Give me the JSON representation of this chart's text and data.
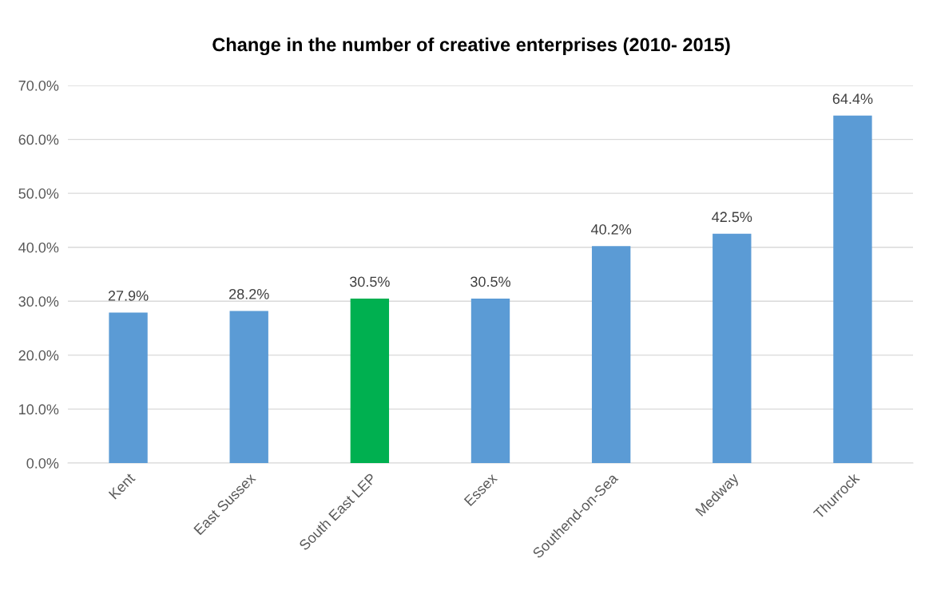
{
  "chart_data": {
    "type": "bar",
    "title": "Change in the number of creative enterprises (2010- 2015)",
    "categories": [
      "Kent",
      "East Sussex",
      "South East LEP",
      "Essex",
      "Southend-on-Sea",
      "Medway",
      "Thurrock"
    ],
    "values": [
      27.9,
      28.2,
      30.5,
      30.5,
      40.2,
      42.5,
      64.4
    ],
    "colors": [
      "#5b9bd5",
      "#5b9bd5",
      "#00b050",
      "#5b9bd5",
      "#5b9bd5",
      "#5b9bd5",
      "#5b9bd5"
    ],
    "value_labels": [
      "27.9%",
      "28.2%",
      "30.5%",
      "30.5%",
      "40.2%",
      "42.5%",
      "64.4%"
    ],
    "ylim": [
      0,
      70
    ],
    "yticks": [
      {
        "value": 0,
        "label": "0.0%"
      },
      {
        "value": 10,
        "label": "10.0%"
      },
      {
        "value": 20,
        "label": "20.0%"
      },
      {
        "value": 30,
        "label": "30.0%"
      },
      {
        "value": 40,
        "label": "40.0%"
      },
      {
        "value": 50,
        "label": "50.0%"
      },
      {
        "value": 60,
        "label": "60.0%"
      },
      {
        "value": 70,
        "label": "70.0%"
      }
    ],
    "grid": "y",
    "legend": false
  }
}
